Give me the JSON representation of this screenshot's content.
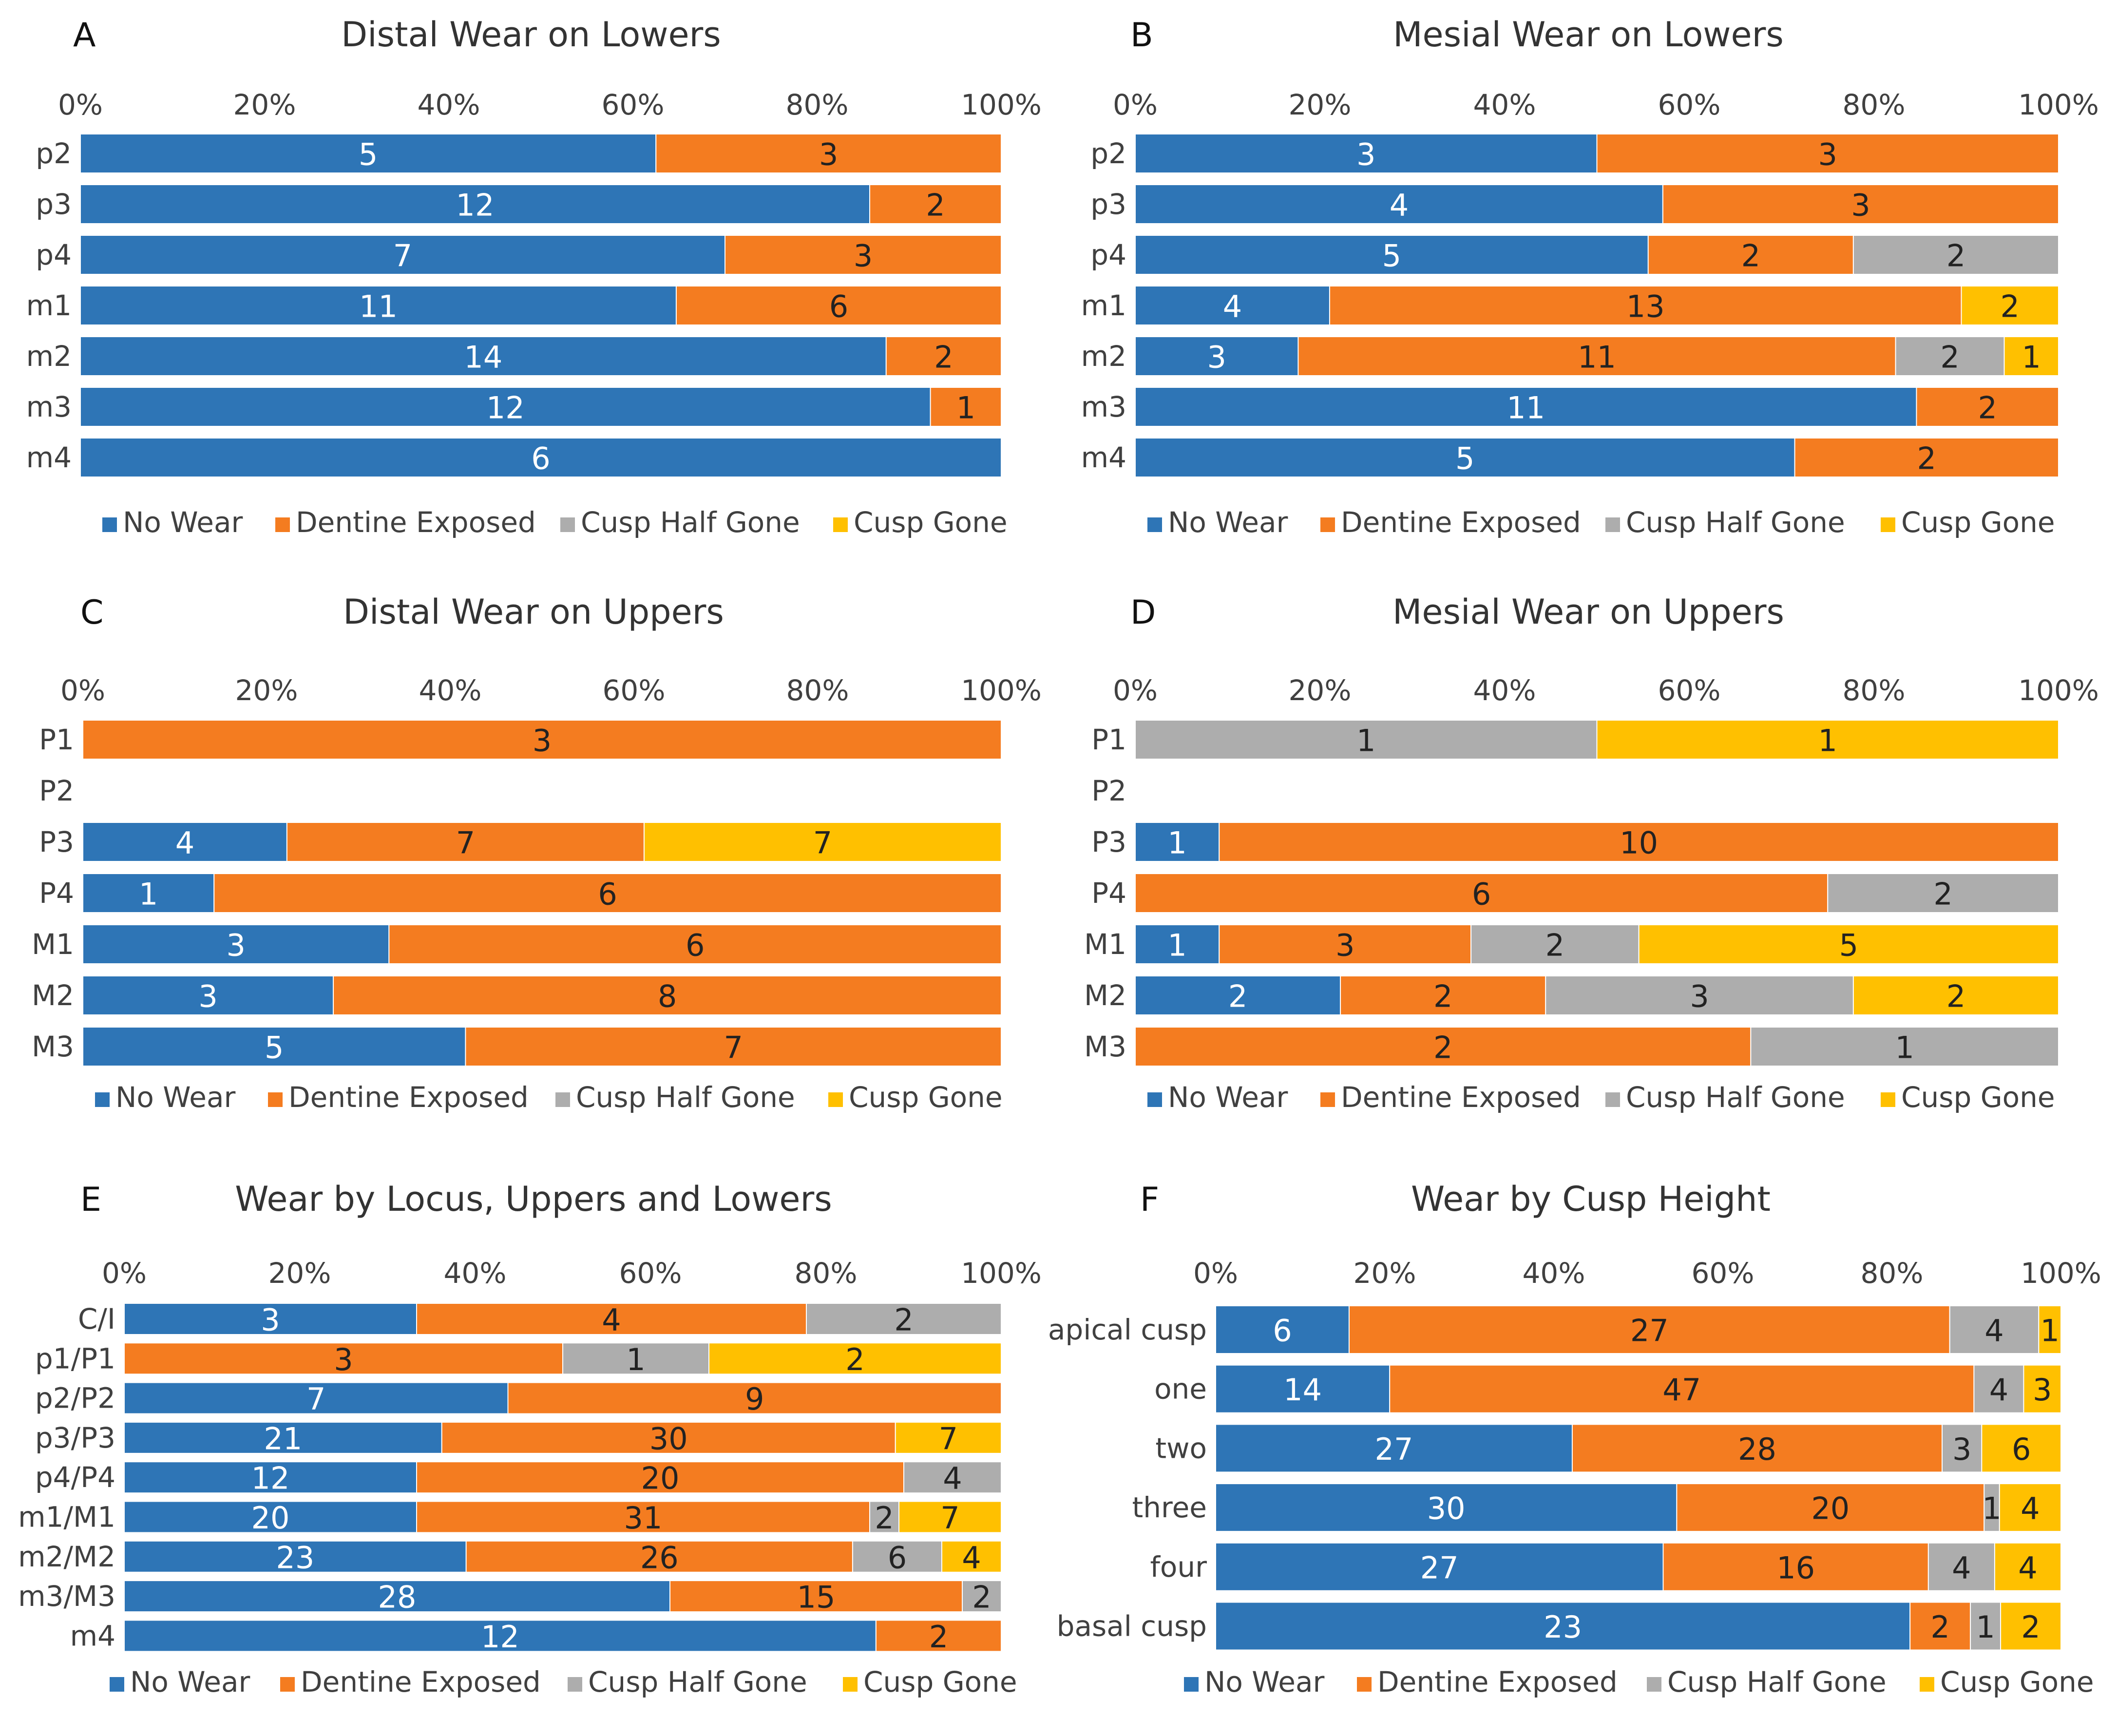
{
  "legend": [
    "No Wear",
    "Dentine Exposed",
    "Cusp Half Gone",
    "Cusp Gone"
  ],
  "colors": {
    "no_wear": "#2E75B6",
    "dentine_exposed": "#F47C20",
    "cusp_half_gone": "#ADADAD",
    "cusp_gone": "#FFC000"
  },
  "axis_ticks": [
    "0%",
    "20%",
    "40%",
    "60%",
    "80%",
    "100%"
  ],
  "chart_data": [
    {
      "panel": "A",
      "title": "Distal Wear on Lowers",
      "type": "bar",
      "stacked": "percent",
      "orientation": "horizontal",
      "xlim": [
        0,
        100
      ],
      "categories": [
        "p2",
        "p3",
        "p4",
        "m1",
        "m2",
        "m3",
        "m4"
      ],
      "series": [
        {
          "name": "No Wear",
          "values": [
            5,
            12,
            7,
            11,
            14,
            12,
            6
          ]
        },
        {
          "name": "Dentine Exposed",
          "values": [
            3,
            2,
            3,
            6,
            2,
            1,
            0
          ]
        },
        {
          "name": "Cusp Half Gone",
          "values": [
            0,
            0,
            0,
            0,
            0,
            0,
            0
          ]
        },
        {
          "name": "Cusp Gone",
          "values": [
            0,
            0,
            0,
            0,
            0,
            0,
            0
          ]
        }
      ]
    },
    {
      "panel": "B",
      "title": "Mesial Wear on Lowers",
      "type": "bar",
      "stacked": "percent",
      "orientation": "horizontal",
      "xlim": [
        0,
        100
      ],
      "categories": [
        "p2",
        "p3",
        "p4",
        "m1",
        "m2",
        "m3",
        "m4"
      ],
      "series": [
        {
          "name": "No Wear",
          "values": [
            3,
            4,
            5,
            4,
            3,
            11,
            5
          ]
        },
        {
          "name": "Dentine Exposed",
          "values": [
            3,
            3,
            2,
            13,
            11,
            2,
            2
          ]
        },
        {
          "name": "Cusp Half Gone",
          "values": [
            0,
            0,
            2,
            0,
            2,
            0,
            0
          ]
        },
        {
          "name": "Cusp Gone",
          "values": [
            0,
            0,
            0,
            2,
            1,
            0,
            0
          ]
        }
      ]
    },
    {
      "panel": "C",
      "title": "Distal Wear on Uppers",
      "type": "bar",
      "stacked": "percent",
      "orientation": "horizontal",
      "xlim": [
        0,
        100
      ],
      "categories": [
        "P1",
        "P2",
        "P3",
        "P4",
        "M1",
        "M2",
        "M3"
      ],
      "series": [
        {
          "name": "No Wear",
          "values": [
            0,
            0,
            4,
            1,
            3,
            3,
            5
          ]
        },
        {
          "name": "Dentine Exposed",
          "values": [
            3,
            0,
            7,
            6,
            6,
            8,
            7
          ]
        },
        {
          "name": "Cusp Half Gone",
          "values": [
            0,
            0,
            0,
            0,
            0,
            0,
            0
          ]
        },
        {
          "name": "Cusp Gone",
          "values": [
            0,
            0,
            7,
            0,
            0,
            0,
            0
          ]
        }
      ]
    },
    {
      "panel": "D",
      "title": "Mesial Wear on Uppers",
      "type": "bar",
      "stacked": "percent",
      "orientation": "horizontal",
      "xlim": [
        0,
        100
      ],
      "categories": [
        "P1",
        "P2",
        "P3",
        "P4",
        "M1",
        "M2",
        "M3"
      ],
      "series": [
        {
          "name": "No Wear",
          "values": [
            0,
            0,
            1,
            0,
            1,
            2,
            0
          ]
        },
        {
          "name": "Dentine Exposed",
          "values": [
            0,
            0,
            10,
            6,
            3,
            2,
            2
          ]
        },
        {
          "name": "Cusp Half Gone",
          "values": [
            1,
            0,
            0,
            2,
            2,
            3,
            1
          ]
        },
        {
          "name": "Cusp Gone",
          "values": [
            1,
            0,
            0,
            0,
            5,
            2,
            0
          ]
        }
      ]
    },
    {
      "panel": "E",
      "title": "Wear by Locus, Uppers and Lowers",
      "type": "bar",
      "stacked": "percent",
      "orientation": "horizontal",
      "xlim": [
        0,
        100
      ],
      "categories": [
        "C/I",
        "p1/P1",
        "p2/P2",
        "p3/P3",
        "p4/P4",
        "m1/M1",
        "m2/M2",
        "m3/M3",
        "m4"
      ],
      "series": [
        {
          "name": "No Wear",
          "values": [
            3,
            0,
            7,
            21,
            12,
            20,
            23,
            28,
            12
          ]
        },
        {
          "name": "Dentine Exposed",
          "values": [
            4,
            3,
            9,
            30,
            20,
            31,
            26,
            15,
            2
          ]
        },
        {
          "name": "Cusp Half Gone",
          "values": [
            2,
            1,
            0,
            0,
            4,
            2,
            6,
            2,
            0
          ]
        },
        {
          "name": "Cusp Gone",
          "values": [
            0,
            2,
            0,
            7,
            0,
            7,
            4,
            0,
            0
          ]
        }
      ]
    },
    {
      "panel": "F",
      "title": "Wear by Cusp Height",
      "type": "bar",
      "stacked": "percent",
      "orientation": "horizontal",
      "xlim": [
        0,
        100
      ],
      "categories": [
        "apical cusp",
        "one",
        "two",
        "three",
        "four",
        "basal cusp"
      ],
      "series": [
        {
          "name": "No Wear",
          "values": [
            6,
            14,
            27,
            30,
            27,
            23
          ]
        },
        {
          "name": "Dentine Exposed",
          "values": [
            27,
            47,
            28,
            20,
            16,
            2
          ]
        },
        {
          "name": "Cusp Half Gone",
          "values": [
            4,
            4,
            3,
            1,
            4,
            1
          ]
        },
        {
          "name": "Cusp Gone",
          "values": [
            1,
            3,
            6,
            4,
            4,
            2
          ]
        }
      ]
    }
  ]
}
